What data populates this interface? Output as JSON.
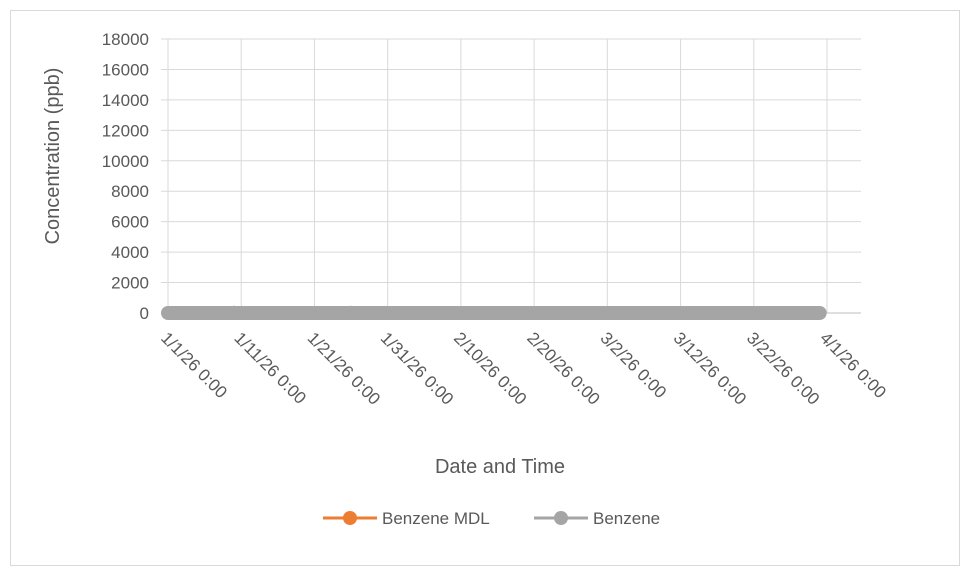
{
  "chart_data": {
    "type": "line",
    "title": "",
    "xlabel": "Date and Time",
    "ylabel": "Concentration (ppb)",
    "ylim": [
      0,
      18000
    ],
    "y_ticks": [
      "0",
      "2000",
      "4000",
      "6000",
      "8000",
      "10000",
      "12000",
      "14000",
      "16000",
      "18000"
    ],
    "xlim": [
      "1/1/26 0:00",
      "4/1/26 0:00"
    ],
    "x_ticks": [
      "1/1/26 0:00",
      "1/11/26 0:00",
      "1/21/26 0:00",
      "1/31/26 0:00",
      "2/10/26 0:00",
      "2/20/26 0:00",
      "3/2/26 0:00",
      "3/12/26 0:00",
      "3/22/26 0:00",
      "4/1/26 0:00"
    ],
    "grid": true,
    "legend": "bottom",
    "series": [
      {
        "name": "Benzene MDL",
        "color": "#ED7D31",
        "x_start": "1/1/26 0:00",
        "x_end": "3/31/26 0:00",
        "value": 0,
        "annotated_points": [
          {
            "x": "1/10/26 0:00",
            "y": 150
          },
          {
            "x": "1/26/26 0:00",
            "y": 150
          }
        ]
      },
      {
        "name": "Benzene",
        "color": "#A5A5A5",
        "x_start": "1/1/26 0:00",
        "x_end": "3/31/26 0:00",
        "value": 0
      }
    ]
  }
}
